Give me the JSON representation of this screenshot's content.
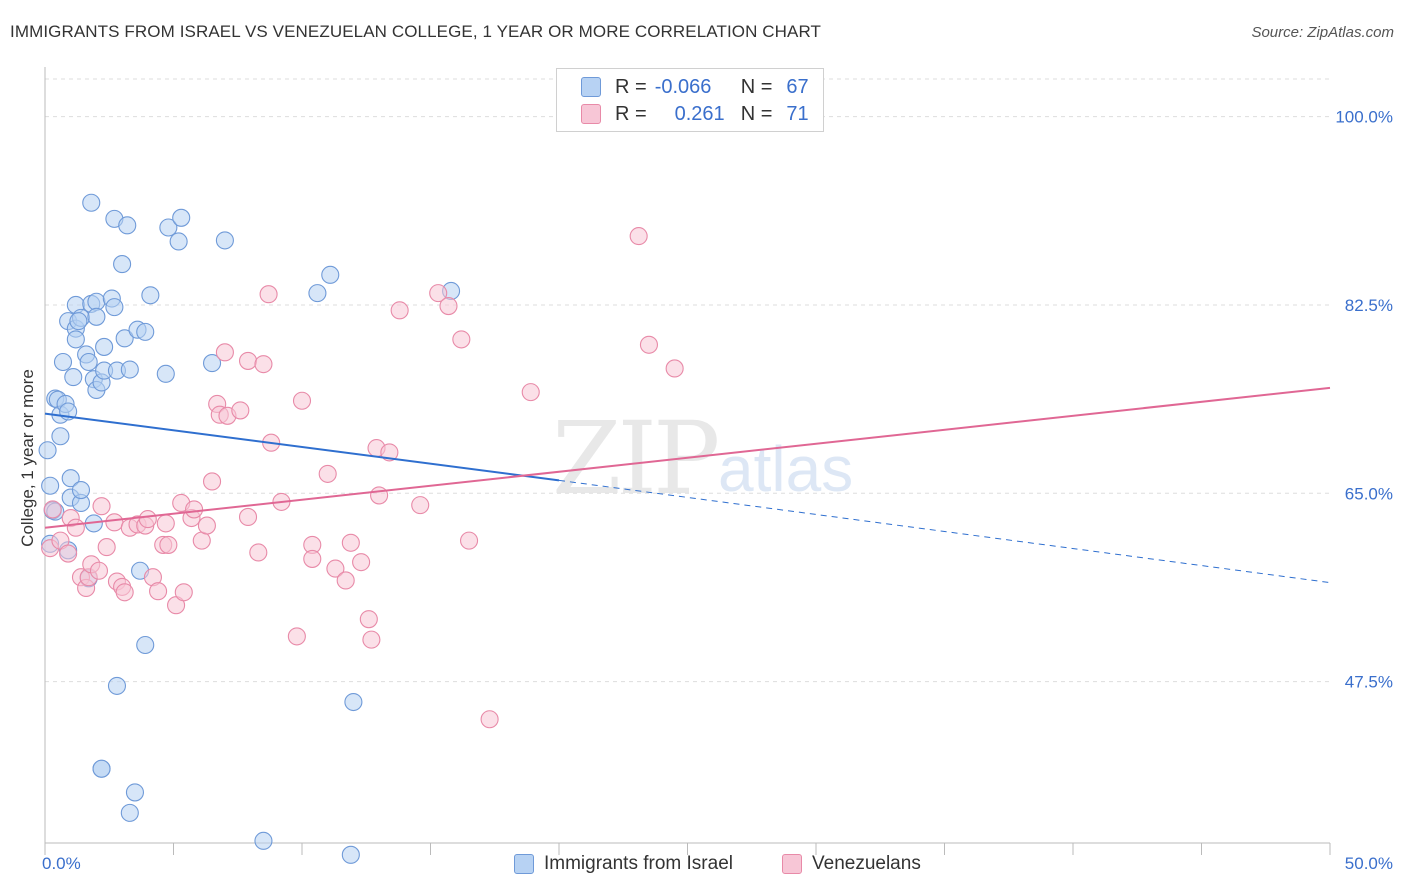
{
  "header": {
    "title": "IMMIGRANTS FROM ISRAEL VS VENEZUELAN COLLEGE, 1 YEAR OR MORE CORRELATION CHART",
    "source": "Source: ZipAtlas.com"
  },
  "legend": {
    "rows": [
      {
        "r_label": "R =",
        "r_value": "-0.066",
        "n_label": "N =",
        "n_value": "67"
      },
      {
        "r_label": "R =",
        "r_value": "0.261",
        "n_label": "N =",
        "n_value": "71"
      }
    ]
  },
  "watermark": {
    "zip": "ZIP",
    "atlas": "atlas"
  },
  "colors": {
    "blue_fill": "#b7d2f3",
    "blue_stroke": "#6f9ad8",
    "blue_line": "#2f6fcf",
    "pink_fill": "#f7c6d6",
    "pink_stroke": "#e88aa8",
    "pink_line": "#e06794",
    "axis_label": "#3a6fcc",
    "grid": "#dddddd"
  },
  "chart_data": {
    "type": "scatter",
    "title": "IMMIGRANTS FROM ISRAEL VS VENEZUELAN COLLEGE, 1 YEAR OR MORE CORRELATION CHART",
    "xlabel": "",
    "ylabel": "College, 1 year or more",
    "xlim": [
      0,
      50
    ],
    "ylim": [
      32.5,
      103.5
    ],
    "x_tick_labels": [
      "0.0%",
      "50.0%"
    ],
    "y_ticks": [
      47.5,
      65.0,
      82.5,
      100.0
    ],
    "y_tick_labels": [
      "47.5%",
      "65.0%",
      "82.5%",
      "100.0%"
    ],
    "series": [
      {
        "name": "Immigrants from Israel",
        "color": "blue",
        "r": -0.066,
        "n": 67,
        "trend": {
          "x0": 0,
          "y0": 72.4,
          "x1": 20,
          "y1": 66.2,
          "dash_to_x": 50,
          "dash_to_y": 56.7
        },
        "points": [
          [
            0.1,
            69.0
          ],
          [
            0.2,
            65.7
          ],
          [
            0.2,
            60.3
          ],
          [
            0.3,
            63.4
          ],
          [
            0.4,
            63.3
          ],
          [
            0.4,
            73.8
          ],
          [
            0.5,
            73.7
          ],
          [
            0.6,
            72.3
          ],
          [
            0.6,
            70.3
          ],
          [
            0.7,
            77.2
          ],
          [
            0.8,
            73.3
          ],
          [
            0.9,
            81.0
          ],
          [
            0.9,
            72.6
          ],
          [
            1.0,
            66.4
          ],
          [
            1.0,
            64.6
          ],
          [
            1.1,
            75.8
          ],
          [
            1.2,
            80.3
          ],
          [
            1.2,
            79.3
          ],
          [
            1.2,
            82.5
          ],
          [
            1.4,
            81.3
          ],
          [
            1.4,
            64.1
          ],
          [
            1.4,
            65.3
          ],
          [
            1.6,
            77.9
          ],
          [
            1.7,
            77.2
          ],
          [
            1.7,
            57.1
          ],
          [
            1.8,
            92.0
          ],
          [
            1.8,
            82.6
          ],
          [
            1.9,
            62.2
          ],
          [
            1.9,
            75.6
          ],
          [
            2.0,
            74.6
          ],
          [
            2.0,
            82.8
          ],
          [
            2.0,
            81.4
          ],
          [
            2.2,
            75.3
          ],
          [
            2.3,
            78.6
          ],
          [
            2.3,
            76.4
          ],
          [
            2.2,
            39.4
          ],
          [
            2.6,
            83.1
          ],
          [
            2.7,
            82.3
          ],
          [
            2.7,
            90.5
          ],
          [
            2.8,
            76.4
          ],
          [
            2.8,
            47.1
          ],
          [
            3.0,
            86.3
          ],
          [
            3.1,
            79.4
          ],
          [
            3.2,
            89.9
          ],
          [
            3.3,
            76.5
          ],
          [
            3.3,
            35.3
          ],
          [
            3.5,
            37.2
          ],
          [
            3.6,
            80.2
          ],
          [
            3.7,
            57.8
          ],
          [
            3.9,
            80.0
          ],
          [
            3.9,
            50.9
          ],
          [
            4.1,
            83.4
          ],
          [
            4.7,
            76.1
          ],
          [
            4.8,
            89.7
          ],
          [
            5.2,
            88.4
          ],
          [
            5.3,
            90.6
          ],
          [
            6.5,
            77.1
          ],
          [
            7.0,
            88.5
          ],
          [
            8.5,
            32.7
          ],
          [
            10.6,
            83.6
          ],
          [
            11.1,
            85.3
          ],
          [
            11.9,
            31.4
          ],
          [
            12.0,
            45.6
          ],
          [
            15.8,
            83.8
          ],
          [
            2.2,
            39.4
          ],
          [
            1.3,
            81.0
          ],
          [
            0.9,
            59.7
          ]
        ]
      },
      {
        "name": "Venezuelans",
        "color": "pink",
        "r": 0.261,
        "n": 71,
        "trend": {
          "x0": 0,
          "y0": 61.8,
          "x1": 50,
          "y1": 74.8
        },
        "points": [
          [
            0.2,
            59.9
          ],
          [
            0.3,
            63.5
          ],
          [
            0.6,
            60.6
          ],
          [
            0.9,
            59.4
          ],
          [
            1.0,
            62.7
          ],
          [
            1.2,
            61.8
          ],
          [
            1.4,
            57.2
          ],
          [
            1.6,
            56.2
          ],
          [
            1.7,
            57.2
          ],
          [
            1.8,
            58.4
          ],
          [
            2.1,
            57.8
          ],
          [
            2.2,
            63.8
          ],
          [
            2.4,
            60.0
          ],
          [
            2.7,
            62.3
          ],
          [
            2.8,
            56.8
          ],
          [
            3.0,
            56.3
          ],
          [
            3.1,
            55.8
          ],
          [
            3.3,
            61.8
          ],
          [
            3.6,
            62.1
          ],
          [
            3.9,
            62.0
          ],
          [
            4.0,
            62.6
          ],
          [
            4.2,
            57.2
          ],
          [
            4.4,
            55.9
          ],
          [
            4.6,
            60.2
          ],
          [
            4.7,
            62.2
          ],
          [
            4.8,
            60.2
          ],
          [
            5.1,
            54.6
          ],
          [
            5.3,
            64.1
          ],
          [
            5.4,
            55.8
          ],
          [
            5.7,
            62.7
          ],
          [
            5.8,
            63.5
          ],
          [
            6.1,
            60.6
          ],
          [
            6.3,
            62.0
          ],
          [
            6.5,
            66.1
          ],
          [
            6.7,
            73.3
          ],
          [
            6.8,
            72.3
          ],
          [
            7.0,
            78.1
          ],
          [
            7.1,
            72.2
          ],
          [
            7.6,
            72.7
          ],
          [
            7.9,
            77.3
          ],
          [
            7.9,
            62.8
          ],
          [
            8.3,
            59.5
          ],
          [
            8.5,
            77.0
          ],
          [
            8.7,
            83.5
          ],
          [
            8.8,
            69.7
          ],
          [
            9.2,
            64.2
          ],
          [
            9.8,
            51.7
          ],
          [
            10.0,
            73.6
          ],
          [
            10.4,
            60.2
          ],
          [
            10.4,
            58.9
          ],
          [
            11.0,
            66.8
          ],
          [
            11.3,
            58.0
          ],
          [
            11.7,
            56.9
          ],
          [
            11.9,
            60.4
          ],
          [
            12.6,
            53.3
          ],
          [
            12.3,
            58.6
          ],
          [
            12.7,
            51.4
          ],
          [
            12.9,
            69.2
          ],
          [
            13.0,
            64.8
          ],
          [
            13.4,
            68.8
          ],
          [
            13.8,
            82.0
          ],
          [
            14.6,
            63.9
          ],
          [
            15.3,
            83.6
          ],
          [
            15.7,
            82.4
          ],
          [
            16.2,
            79.3
          ],
          [
            16.5,
            60.6
          ],
          [
            17.3,
            44.0
          ],
          [
            18.9,
            74.4
          ],
          [
            23.1,
            88.9
          ],
          [
            23.5,
            78.8
          ],
          [
            24.5,
            76.6
          ]
        ]
      }
    ]
  }
}
